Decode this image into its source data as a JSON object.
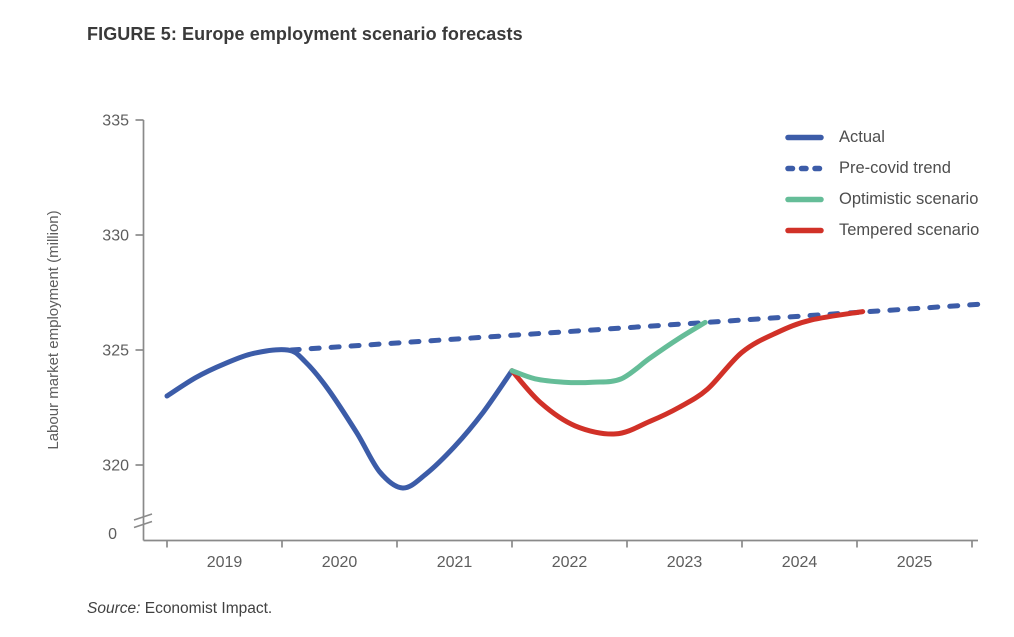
{
  "figure": {
    "title": "FIGURE 5: Europe employment scenario forecasts",
    "source_prefix": "Source:",
    "source_text": " Economist Impact."
  },
  "legend": {
    "position": "top-right",
    "items": [
      {
        "label": "Actual",
        "color": "#3c5ca8",
        "dash": false
      },
      {
        "label": "Pre-covid trend",
        "color": "#3c5ca8",
        "dash": true
      },
      {
        "label": "Optimistic scenario",
        "color": "#65bd98",
        "dash": false
      },
      {
        "label": "Tempered scenario",
        "color": "#d13128",
        "dash": false
      }
    ]
  },
  "chart_data": {
    "type": "line",
    "title": "FIGURE 5: Europe employment scenario forecasts",
    "xlabel": "",
    "ylabel": "Labour market employment (million)",
    "x_tick_labels": [
      2019,
      2020,
      2021,
      2022,
      2023,
      2024,
      2025
    ],
    "x_boundary_ticks": [
      2019,
      2020,
      2021,
      2022,
      2023,
      2024,
      2025,
      2026
    ],
    "y_ticks": [
      320,
      325,
      330,
      335
    ],
    "y_zero_tick": 0,
    "y_axis_break": true,
    "xlim": [
      2018.8,
      2026.15
    ],
    "ylim": [
      318.5,
      335
    ],
    "grid": false,
    "series": [
      {
        "name": "Actual",
        "color": "#3c5ca8",
        "style": "solid",
        "z": 1,
        "points": [
          [
            2019.0,
            323.0
          ],
          [
            2019.25,
            323.8
          ],
          [
            2019.5,
            324.4
          ],
          [
            2019.75,
            324.85
          ],
          [
            2020.05,
            325.0
          ],
          [
            2020.2,
            324.5
          ],
          [
            2020.4,
            323.3
          ],
          [
            2020.65,
            321.4
          ],
          [
            2020.85,
            319.7
          ],
          [
            2021.05,
            319.0
          ],
          [
            2021.25,
            319.6
          ],
          [
            2021.5,
            320.8
          ],
          [
            2021.75,
            322.3
          ],
          [
            2022.0,
            324.1
          ]
        ]
      },
      {
        "name": "Pre-covid trend",
        "color": "#3c5ca8",
        "style": "dashed",
        "z": 0,
        "points": [
          [
            2020.08,
            325.0
          ],
          [
            2026.1,
            327.0
          ]
        ]
      },
      {
        "name": "Optimistic scenario",
        "color": "#65bd98",
        "style": "solid",
        "z": 3,
        "points": [
          [
            2022.0,
            324.1
          ],
          [
            2022.2,
            323.75
          ],
          [
            2022.45,
            323.6
          ],
          [
            2022.7,
            323.6
          ],
          [
            2022.95,
            323.75
          ],
          [
            2023.2,
            324.65
          ],
          [
            2023.45,
            325.5
          ],
          [
            2023.68,
            326.2
          ]
        ]
      },
      {
        "name": "Tempered scenario",
        "color": "#d13128",
        "style": "solid",
        "z": 2,
        "points": [
          [
            2022.0,
            324.1
          ],
          [
            2022.25,
            322.7
          ],
          [
            2022.55,
            321.7
          ],
          [
            2022.9,
            321.35
          ],
          [
            2023.2,
            321.9
          ],
          [
            2023.45,
            322.5
          ],
          [
            2023.7,
            323.3
          ],
          [
            2024.0,
            324.9
          ],
          [
            2024.3,
            325.75
          ],
          [
            2024.6,
            326.3
          ],
          [
            2025.05,
            326.67
          ]
        ]
      }
    ]
  },
  "colors": {
    "axis": "#8a8a8a",
    "tick_text": "#5d5d5d",
    "axis_label": "#5d5d5d",
    "title_text": "#3a3a3a",
    "legend_text": "#4e4e4e",
    "source_text": "#414141",
    "background": "#ffffff"
  }
}
